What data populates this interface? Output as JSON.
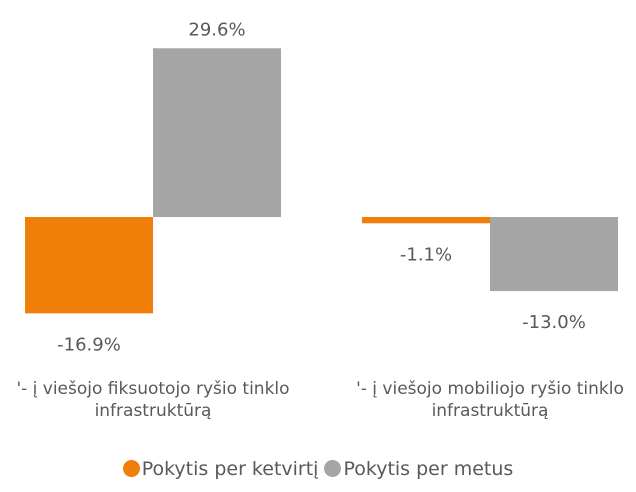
{
  "chart_data": {
    "type": "bar",
    "categories": [
      "'- į viešojo fiksuotojo ryšio tinklo infrastruktūrą",
      "'- į viešojo mobiliojo ryšio tinklo infrastruktūrą"
    ],
    "series": [
      {
        "name": "Pokytis per ketvirtį",
        "color": "#f07f09",
        "values": [
          -16.9,
          -1.1
        ],
        "value_labels": [
          "-16.9%",
          "-1.1%"
        ]
      },
      {
        "name": "Pokytis per metus",
        "color": "#a5a5a5",
        "values": [
          29.6,
          -13.0
        ],
        "value_labels": [
          "29.6%",
          "-13.0%"
        ]
      }
    ],
    "ylim": [
      -20,
      30
    ],
    "legend": "bottom"
  }
}
